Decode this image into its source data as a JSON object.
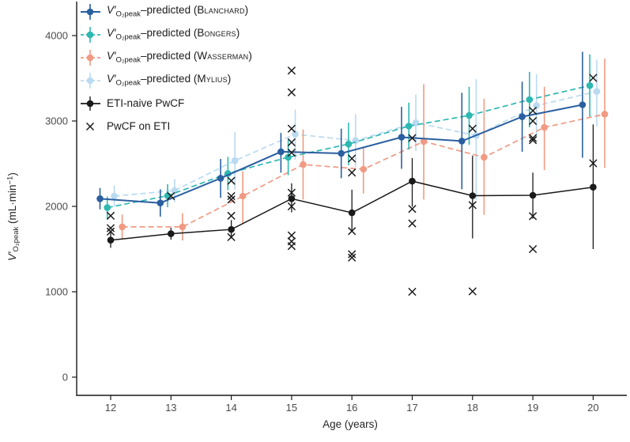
{
  "figure": {
    "background": "#ffffff",
    "text_color": "#1a1a1a"
  },
  "labels": {
    "x_axis": "Age (years)",
    "y_axis": {
      "v": "V′",
      "sub": "O₂peak",
      "mid": " (mL·min",
      "sup": "−1",
      "close": ")"
    }
  },
  "legend": {
    "shared": {
      "v": "V′",
      "sub": "O₂peak",
      "mid": "–predicted (",
      "close": ")"
    },
    "items": [
      {
        "name": "Blanchard"
      },
      {
        "name": "Bongers"
      },
      {
        "name": "Wasserman"
      },
      {
        "name": "Mylius"
      },
      {
        "label": "ETI-naive PwCF"
      },
      {
        "label": "PwCF on ETI"
      }
    ]
  },
  "chart_data": {
    "type": "line",
    "title": "",
    "xlabel": "Age (years)",
    "ylabel": "V′O₂peak (mL·min−1)",
    "x": [
      12,
      13,
      14,
      15,
      16,
      17,
      18,
      19,
      20
    ],
    "xticks": [
      12,
      13,
      14,
      15,
      16,
      17,
      18,
      19,
      20
    ],
    "yticks": [
      0,
      1000,
      2000,
      3000,
      4000
    ],
    "xlim": [
      11.44,
      20.56
    ],
    "ylim": [
      -210,
      4420
    ],
    "grid": false,
    "legend_position": "top-left-inside",
    "series": [
      {
        "id": "blanchard",
        "label": "V′O2peak-predicted (Blanchard)",
        "color": "#2a5fa0",
        "line": "solid",
        "marker": "circle",
        "dodge": -0.177,
        "values": [
          2090,
          2040,
          2330,
          2640,
          2620,
          2810,
          2765,
          3050,
          3190
        ],
        "err_lo": [
          1965,
          1880,
          2100,
          2395,
          2330,
          2440,
          2200,
          2640,
          2570
        ],
        "err_hi": [
          2215,
          2200,
          2555,
          2860,
          2910,
          3165,
          3330,
          3460,
          3810
        ]
      },
      {
        "id": "bongers",
        "label": "V′O2peak-predicted (Bongers)",
        "color": "#2eb8b2",
        "line": "dashed",
        "marker": "circle",
        "dodge": -0.056,
        "values": [
          1985,
          2125,
          2385,
          2575,
          2730,
          2940,
          3065,
          3250,
          3415
        ],
        "err_lo": [
          1855,
          1990,
          2190,
          2365,
          2480,
          2665,
          2720,
          2925,
          3050
        ],
        "err_hi": [
          2115,
          2260,
          2580,
          2780,
          2980,
          3215,
          3400,
          3575,
          3780
        ]
      },
      {
        "id": "wasserman",
        "label": "V′O2peak-predicted (Wasserman)",
        "color": "#f19a83",
        "line": "dashed",
        "marker": "circle",
        "dodge": 0.191,
        "values": [
          1760,
          1760,
          2120,
          2490,
          2435,
          2760,
          2575,
          2925,
          3080
        ],
        "err_lo": [
          1615,
          1600,
          1795,
          2080,
          2150,
          2080,
          1900,
          2425,
          2450
        ],
        "err_hi": [
          1905,
          1920,
          2410,
          2900,
          2700,
          3430,
          3260,
          3400,
          3730
        ]
      },
      {
        "id": "mylius",
        "label": "V′O2peak-predicted (Mylius)",
        "color": "#badaf1",
        "line": "dashed",
        "marker": "circle",
        "dodge": 0.06,
        "values": [
          2120,
          2185,
          2535,
          2845,
          2770,
          2980,
          2830,
          3180,
          3345
        ],
        "err_lo": [
          1995,
          2050,
          2195,
          2545,
          2460,
          2650,
          2075,
          2810,
          2935
        ],
        "err_hi": [
          2245,
          2320,
          2870,
          3135,
          3080,
          3310,
          3490,
          3550,
          3720
        ]
      },
      {
        "id": "eti_naive",
        "label": "ETI-naive PwCF",
        "color": "#1a1a1a",
        "line": "solid",
        "marker": "circle",
        "dodge": 0,
        "values": [
          1605,
          1680,
          1730,
          2090,
          1925,
          2295,
          2125,
          2130,
          2225
        ],
        "err_lo": [
          1515,
          1610,
          1625,
          1930,
          1700,
          1995,
          1625,
          1855,
          1500
        ],
        "err_hi": [
          1695,
          1750,
          1840,
          2270,
          2195,
          2565,
          2595,
          2395,
          2960
        ]
      }
    ],
    "eti_scatter": {
      "label": "PwCF on ETI",
      "marker": "x",
      "color": "#1a1a1a",
      "points": [
        {
          "age": 12,
          "values": [
            1890,
            1745,
            1705
          ]
        },
        {
          "age": 13,
          "values": [
            2120
          ]
        },
        {
          "age": 14,
          "values": [
            2300,
            2120,
            2080,
            1890,
            1640
          ]
        },
        {
          "age": 15,
          "values": [
            3590,
            3335,
            2910,
            2750,
            2630,
            2160,
            2000,
            1660,
            1590,
            1535
          ]
        },
        {
          "age": 16,
          "values": [
            2560,
            2395,
            1710,
            1440,
            1400
          ]
        },
        {
          "age": 17,
          "values": [
            2800,
            1970,
            1800,
            1000
          ]
        },
        {
          "age": 18,
          "values": [
            2910,
            2015,
            1005
          ]
        },
        {
          "age": 19,
          "values": [
            3120,
            3000,
            2800,
            2775,
            1885,
            1500
          ]
        },
        {
          "age": 20,
          "values": [
            3505,
            2505
          ]
        }
      ]
    }
  }
}
